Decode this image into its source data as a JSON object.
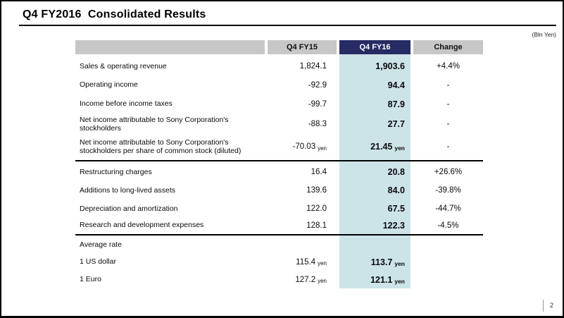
{
  "slide": {
    "title": "Q4 FY2016  Consolidated Results",
    "unit_note": "(Bln Yen)",
    "page_number": "2"
  },
  "table": {
    "header": {
      "col_fy15": "Q4 FY15",
      "col_fy16": "Q4 FY16",
      "col_change": "Change"
    },
    "colors": {
      "fy16_header_bg": "#272b63",
      "gray_header_bg": "#c7c7c7",
      "fy16_column_bg": "#cce3e8"
    },
    "rows": [
      {
        "label": "Sales & operating revenue",
        "fy15": "1,824.1",
        "fy16": "1,903.6",
        "change": "+4.4%"
      },
      {
        "label": "Operating income",
        "fy15": "-92.9",
        "fy16": "94.4",
        "change": "-"
      },
      {
        "label": "Income before income taxes",
        "fy15": "-99.7",
        "fy16": "87.9",
        "change": "-"
      },
      {
        "label": "Net income attributable to Sony Corporation's stockholders",
        "fy15": "-88.3",
        "fy16": "27.7",
        "change": "-"
      },
      {
        "label": "Net income attributable to Sony Corporation's stockholders per share of common stock (diluted)",
        "fy15": "-70.03",
        "fy15_suffix": "yen",
        "fy16": "21.45",
        "fy16_suffix": "yen",
        "change": "-"
      },
      {
        "label": "Restructuring charges",
        "fy15": "16.4",
        "fy16": "20.8",
        "change": "+26.6%"
      },
      {
        "label": "Additions to long-lived assets",
        "fy15": "139.6",
        "fy16": "84.0",
        "change": "-39.8%"
      },
      {
        "label": "Depreciation and amortization",
        "fy15": "122.0",
        "fy16": "67.5",
        "change": "-44.7%"
      },
      {
        "label": "Research and development expenses",
        "fy15": "128.1",
        "fy16": "122.3",
        "change": "-4.5%"
      },
      {
        "label": "Average rate"
      },
      {
        "label": "1 US dollar",
        "fy15": "115.4",
        "fy15_suffix": "yen",
        "fy16": "113.7",
        "fy16_suffix": "yen"
      },
      {
        "label": "1 Euro",
        "fy15": "127.2",
        "fy15_suffix": "yen",
        "fy16": "121.1",
        "fy16_suffix": "yen"
      }
    ]
  }
}
